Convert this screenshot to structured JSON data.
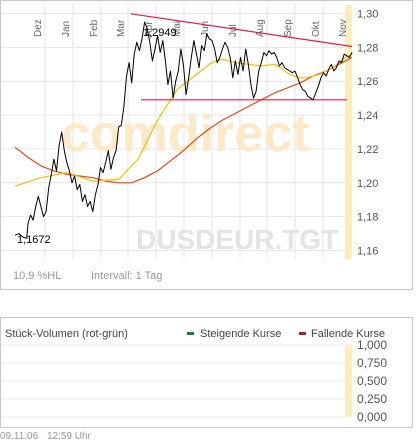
{
  "chart": {
    "watermark_brand": "comdirect",
    "watermark_symbol": "DUSDEUR.TGT",
    "hl_label": "10,9 %HL",
    "interval_label": "Intervall: 1 Tag",
    "high_label": "1,2949",
    "low_label": "1,1672"
  },
  "volume": {
    "title": "Stück-Volumen (rot-grün)",
    "legend_up": "Steigende Kurse",
    "legend_down": "Fallende Kurse",
    "legend_up_color": "#1a7a3a",
    "legend_down_color": "#b22222"
  },
  "footer": {
    "date": "09.11.06",
    "time": "12:59 Uhr"
  },
  "chart_data": [
    {
      "type": "line",
      "x_tick_labels": [
        "Dez",
        "Jan",
        "Feb",
        "Mar",
        "Apr",
        "Mai",
        "Jun",
        "Jul",
        "Aug",
        "Sep",
        "Okt",
        "Nov"
      ],
      "y_tick_labels": [
        "1,30",
        "1,28",
        "1,26",
        "1,24",
        "1,22",
        "1,20",
        "1,18",
        "1,16"
      ],
      "ylim": [
        1.155,
        1.305
      ],
      "grid": true,
      "annotations": {
        "max": "1,2949",
        "min": "1,1672"
      },
      "colors": {
        "price": "#000000",
        "ma_short": "#f0c000",
        "ma_long": "#e04818",
        "trendlines": "#e8184a"
      },
      "series": [
        {
          "role": "price",
          "x": [
            0,
            3,
            6,
            9,
            10,
            12,
            14,
            16,
            18,
            20,
            22,
            24,
            26,
            28,
            30,
            32,
            34,
            36,
            38,
            40,
            42,
            44,
            46,
            48,
            50,
            52,
            54,
            56,
            58,
            60,
            62,
            64,
            66,
            68,
            70,
            72,
            74,
            76,
            78,
            80,
            82,
            84,
            86,
            88,
            90,
            92,
            94,
            96,
            98,
            100,
            102,
            104,
            106,
            108,
            110,
            112,
            114,
            116,
            118,
            120,
            122,
            124,
            126,
            128,
            130,
            132,
            134,
            136,
            138,
            140,
            142,
            144,
            146,
            148,
            150,
            152,
            154,
            156,
            158,
            160,
            162,
            164,
            166,
            168,
            170,
            172,
            174,
            176,
            178,
            180,
            182,
            184,
            186,
            188,
            190,
            192,
            194,
            196,
            198,
            200,
            202,
            204,
            206,
            208,
            210,
            212,
            214,
            216,
            218,
            220,
            222,
            224,
            226,
            228,
            230,
            232,
            234,
            236,
            238,
            240,
            242,
            244,
            246,
            248,
            250,
            252,
            254,
            256,
            258,
            260
          ],
          "values": [
            1.169,
            1.17,
            1.168,
            1.1672,
            1.176,
            1.181,
            1.178,
            1.186,
            1.192,
            1.186,
            1.18,
            1.183,
            1.197,
            1.205,
            1.214,
            1.207,
            1.222,
            1.23,
            1.219,
            1.212,
            1.207,
            1.2,
            1.204,
            1.196,
            1.199,
            1.189,
            1.193,
            1.186,
            1.189,
            1.183,
            1.193,
            1.199,
            1.209,
            1.206,
            1.212,
            1.219,
            1.208,
            1.215,
            1.219,
            1.233,
            1.234,
            1.245,
            1.263,
            1.271,
            1.259,
            1.276,
            1.283,
            1.278,
            1.285,
            1.2949,
            1.291,
            1.283,
            1.272,
            1.279,
            1.287,
            1.277,
            1.284,
            1.272,
            1.258,
            1.266,
            1.25,
            1.26,
            1.266,
            1.279,
            1.269,
            1.252,
            1.262,
            1.274,
            1.284,
            1.276,
            1.268,
            1.281,
            1.278,
            1.288,
            1.285,
            1.284,
            1.279,
            1.271,
            1.274,
            1.279,
            1.283,
            1.28,
            1.274,
            1.262,
            1.272,
            1.264,
            1.274,
            1.266,
            1.279,
            1.27,
            1.258,
            1.25,
            1.254,
            1.266,
            1.271,
            1.277,
            1.275,
            1.278,
            1.276,
            1.277,
            1.274,
            1.269,
            1.271,
            1.268,
            1.267,
            1.266,
            1.265,
            1.266,
            1.262,
            1.258,
            1.255,
            1.254,
            1.251,
            1.25,
            1.249,
            1.253,
            1.257,
            1.262,
            1.265,
            1.263,
            1.267,
            1.27,
            1.266,
            1.268,
            1.272,
            1.271,
            1.276,
            1.275,
            1.274,
            1.277
          ]
        },
        {
          "role": "ma_short",
          "x": [
            0,
            20,
            40,
            60,
            80,
            95,
            110,
            125,
            140,
            150,
            155,
            160,
            170,
            180,
            190,
            200,
            205,
            210,
            215,
            220,
            225,
            230,
            235,
            240,
            245,
            250,
            255,
            260
          ],
          "values": [
            1.198,
            1.203,
            1.206,
            1.201,
            1.202,
            1.214,
            1.237,
            1.255,
            1.264,
            1.27,
            1.272,
            1.273,
            1.271,
            1.27,
            1.269,
            1.27,
            1.268,
            1.265,
            1.263,
            1.262,
            1.262,
            1.263,
            1.264,
            1.266,
            1.268,
            1.271,
            1.274,
            1.276
          ]
        },
        {
          "role": "ma_long",
          "x": [
            0,
            10,
            20,
            30,
            40,
            50,
            60,
            70,
            80,
            90,
            100,
            110,
            120,
            130,
            140,
            150,
            160,
            170,
            180,
            190,
            200,
            210,
            220,
            230,
            240,
            250,
            260
          ],
          "values": [
            1.221,
            1.215,
            1.21,
            1.207,
            1.205,
            1.204,
            1.203,
            1.201,
            1.2,
            1.2,
            1.203,
            1.207,
            1.213,
            1.219,
            1.226,
            1.232,
            1.237,
            1.241,
            1.245,
            1.249,
            1.253,
            1.256,
            1.259,
            1.263,
            1.266,
            1.27,
            1.274
          ]
        },
        {
          "role": "trend_resistance",
          "x": [
            94,
            260
          ],
          "values": [
            1.299,
            1.281
          ]
        },
        {
          "role": "trend_support",
          "x": [
            100,
            260
          ],
          "values": [
            1.249,
            1.249
          ]
        }
      ]
    },
    {
      "type": "bar",
      "title": "Stück-Volumen (rot-grün)",
      "y_tick_labels": [
        "1,000",
        "0,750",
        "0,500",
        "0,250",
        "0,000"
      ],
      "ylim": [
        0,
        1
      ],
      "series": [
        {
          "name": "Steigende Kurse",
          "values": []
        },
        {
          "name": "Fallende Kurse",
          "values": []
        }
      ]
    }
  ]
}
